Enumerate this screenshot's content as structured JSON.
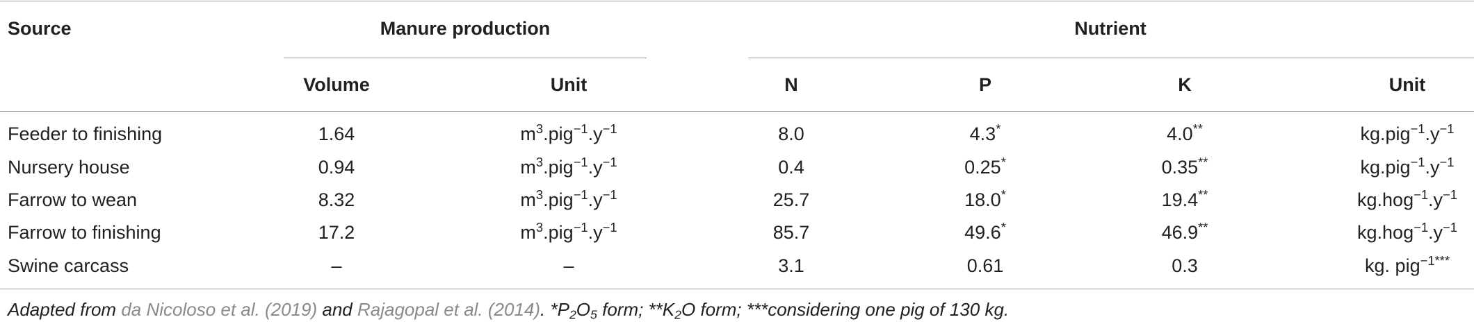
{
  "table": {
    "header": [
      "Source",
      "Manure production",
      "Nutrient"
    ],
    "subheader": [
      "Volume",
      "Unit",
      "N",
      "P",
      "K",
      "Unit"
    ],
    "rows": [
      [
        [
          "Feeder to finishing"
        ],
        [
          "1.64"
        ],
        [
          "m",
          {
            "sup": "3"
          },
          ".pig",
          {
            "sup": "−1"
          },
          ".y",
          {
            "sup": "−1"
          }
        ],
        [
          "8.0"
        ],
        [
          "4.3",
          {
            "sup": "*"
          }
        ],
        [
          "4.0",
          {
            "sup": "**"
          }
        ],
        [
          "kg.pig",
          {
            "sup": "−1"
          },
          ".y",
          {
            "sup": "−1"
          }
        ]
      ],
      [
        [
          "Nursery house"
        ],
        [
          "0.94"
        ],
        [
          "m",
          {
            "sup": "3"
          },
          ".pig",
          {
            "sup": "−1"
          },
          ".y",
          {
            "sup": "−1"
          }
        ],
        [
          "0.4"
        ],
        [
          "0.25",
          {
            "sup": "*"
          }
        ],
        [
          "0.35",
          {
            "sup": "**"
          }
        ],
        [
          "kg.pig",
          {
            "sup": "−1"
          },
          ".y",
          {
            "sup": "−1"
          }
        ]
      ],
      [
        [
          "Farrow to wean"
        ],
        [
          "8.32"
        ],
        [
          "m",
          {
            "sup": "3"
          },
          ".pig",
          {
            "sup": "−1"
          },
          ".y",
          {
            "sup": "−1"
          }
        ],
        [
          "25.7"
        ],
        [
          "18.0",
          {
            "sup": "*"
          }
        ],
        [
          "19.4",
          {
            "sup": "**"
          }
        ],
        [
          "kg.hog",
          {
            "sup": "−1"
          },
          ".y",
          {
            "sup": "−1"
          }
        ]
      ],
      [
        [
          "Farrow to finishing"
        ],
        [
          "17.2"
        ],
        [
          "m",
          {
            "sup": "3"
          },
          ".pig",
          {
            "sup": "−1"
          },
          ".y",
          {
            "sup": "−1"
          }
        ],
        [
          "85.7"
        ],
        [
          "49.6",
          {
            "sup": "*"
          }
        ],
        [
          "46.9",
          {
            "sup": "**"
          }
        ],
        [
          "kg.hog",
          {
            "sup": "−1"
          },
          ".y",
          {
            "sup": "−1"
          }
        ]
      ],
      [
        [
          "Swine carcass"
        ],
        [
          "–"
        ],
        [
          "–"
        ],
        [
          "3.1"
        ],
        [
          "0.61"
        ],
        [
          "0.3"
        ],
        [
          "kg. pig",
          {
            "sup": "−1***"
          }
        ]
      ]
    ],
    "footnote": [
      "Adapted from ",
      {
        "link": "da Nicoloso et al. (2019)"
      },
      " and ",
      {
        "link": "Rajagopal et al. (2014)"
      },
      ". *P",
      {
        "sub": "2"
      },
      "O",
      {
        "sub": "5"
      },
      " form; **K",
      {
        "sub": "2"
      },
      "O form; ***considering one pig of 130 kg."
    ]
  }
}
